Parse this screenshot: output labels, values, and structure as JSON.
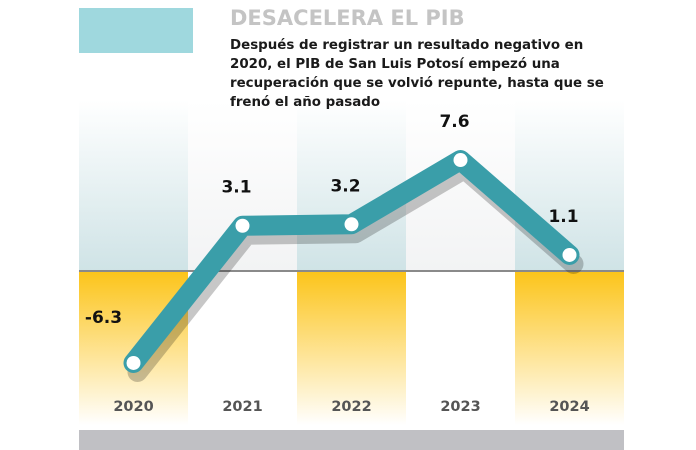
{
  "title": "DESACELERA EL PIB",
  "subtitle": "Después de registrar un resultado negativo en 2020, el PIB de San Luis Potosí empezó una recuperación que se volvió repunte, hasta que se frenó el año pasado",
  "chart_data": {
    "type": "line",
    "categories": [
      "2020",
      "2021",
      "2022",
      "2023",
      "2024"
    ],
    "values": [
      -6.3,
      3.1,
      3.2,
      7.6,
      1.1
    ],
    "labels": [
      "-6.3",
      "3.1",
      "3.2",
      "7.6",
      "1.1"
    ],
    "ylim": [
      -7.5,
      10
    ],
    "grid": false,
    "colors": {
      "line": "#3a9ea9",
      "accent_box": "#9fd8de",
      "negative_band": "#fcc419",
      "footer": "#c0c0c4"
    }
  }
}
